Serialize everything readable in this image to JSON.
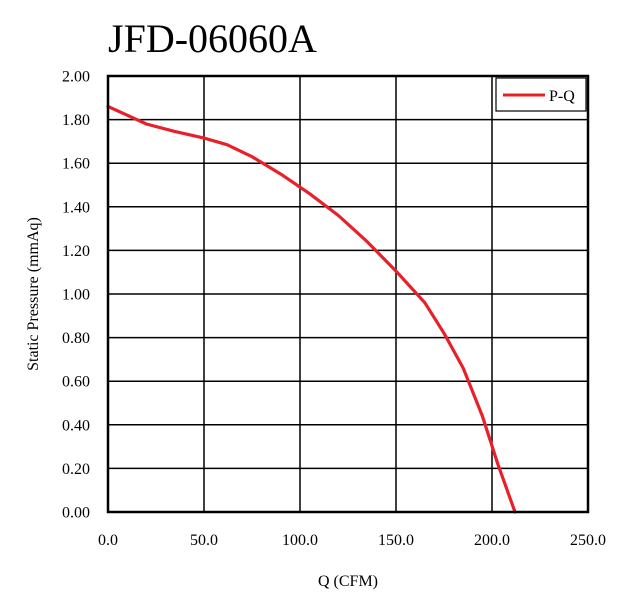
{
  "chart_data": {
    "type": "line",
    "title": "JFD-06060A",
    "xlabel": "Q (CFM)",
    "ylabel": "Static Pressure (mmAq)",
    "xlim": [
      0,
      250
    ],
    "ylim": [
      0,
      2
    ],
    "x_ticks": [
      "0.0",
      "50.0",
      "100.0",
      "150.0",
      "200.0",
      "250.0"
    ],
    "y_ticks": [
      "0.00",
      "0.20",
      "0.40",
      "0.60",
      "0.80",
      "1.00",
      "1.20",
      "1.40",
      "1.60",
      "1.80",
      "2.00"
    ],
    "grid": true,
    "legend": {
      "position": "top-right",
      "entries": [
        "P-Q"
      ]
    },
    "series": [
      {
        "name": "P-Q",
        "color": "#e8202a",
        "points": [
          [
            0,
            1.86
          ],
          [
            10,
            1.82
          ],
          [
            20,
            1.78
          ],
          [
            35,
            1.745
          ],
          [
            50,
            1.715
          ],
          [
            62,
            1.685
          ],
          [
            75,
            1.63
          ],
          [
            90,
            1.55
          ],
          [
            105,
            1.46
          ],
          [
            120,
            1.36
          ],
          [
            135,
            1.24
          ],
          [
            150,
            1.105
          ],
          [
            165,
            0.96
          ],
          [
            175,
            0.82
          ],
          [
            185,
            0.66
          ],
          [
            195,
            0.44
          ],
          [
            203,
            0.22
          ],
          [
            212,
            0.0
          ]
        ]
      }
    ]
  }
}
